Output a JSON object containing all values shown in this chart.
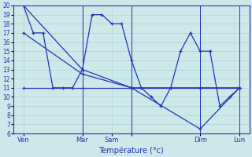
{
  "xlabel": "Température (°c)",
  "background_color": "#cce8e8",
  "grid_color": "#aad4d4",
  "line_color": "#2233bb",
  "ylim": [
    6,
    20
  ],
  "yticks": [
    6,
    7,
    8,
    9,
    10,
    11,
    12,
    13,
    14,
    15,
    16,
    17,
    18,
    19,
    20
  ],
  "xlim": [
    0,
    24
  ],
  "x_tick_positions": [
    1,
    7,
    10,
    12,
    19,
    23
  ],
  "x_tick_labels": [
    "Ven",
    "Mar",
    "Sam",
    "",
    "Dim",
    "Lun"
  ],
  "vlines": [
    7,
    12,
    19,
    23
  ],
  "line1_x": [
    1,
    2,
    3,
    4,
    5,
    6,
    7,
    8,
    9,
    10,
    11,
    12,
    13,
    14,
    15,
    16,
    17,
    18,
    19,
    20,
    21,
    22,
    23
  ],
  "line1_y": [
    20,
    17,
    17,
    11,
    11,
    11,
    13,
    19,
    19,
    18,
    18,
    14,
    11,
    10,
    9,
    11,
    15,
    17,
    15,
    15,
    9,
    10,
    11
  ],
  "line2_x": [
    1,
    7,
    12,
    19,
    23
  ],
  "line2_y": [
    20,
    13,
    11,
    6.5,
    11
  ],
  "line3_x": [
    1,
    7,
    12,
    19,
    23
  ],
  "line3_y": [
    17,
    12.5,
    11,
    11,
    11
  ],
  "line4_x": [
    1,
    7,
    12,
    19,
    23
  ],
  "line4_y": [
    11,
    11,
    11,
    11,
    11
  ]
}
